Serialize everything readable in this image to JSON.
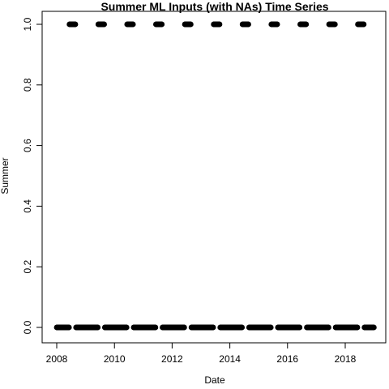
{
  "chart_data": {
    "type": "scatter",
    "title": "Summer ML Inputs (with NAs) Time Series",
    "xlabel": "Date",
    "ylabel": "Summer",
    "x_ticks": [
      "2008",
      "2010",
      "2012",
      "2014",
      "2016",
      "2018"
    ],
    "y_ticks": [
      "0.0",
      "0.2",
      "0.4",
      "0.6",
      "0.8",
      "1.0"
    ],
    "xlim": [
      "2007-10-16",
      "2019-03-15"
    ],
    "ylim": [
      -0.04,
      1.04
    ],
    "grid": false,
    "legend": "none",
    "marker": "filled-circle",
    "color": "#000000",
    "series": [
      {
        "description": "Summer = 1 runs (date ranges)",
        "y": 1,
        "segments": [
          [
            "2008-06-10",
            "2008-08-25"
          ],
          [
            "2009-06-10",
            "2009-08-25"
          ],
          [
            "2010-06-10",
            "2010-08-25"
          ],
          [
            "2011-06-10",
            "2011-08-25"
          ],
          [
            "2012-06-10",
            "2012-08-25"
          ],
          [
            "2013-06-10",
            "2013-08-25"
          ],
          [
            "2014-06-10",
            "2014-08-25"
          ],
          [
            "2015-06-10",
            "2015-08-25"
          ],
          [
            "2016-06-10",
            "2016-08-25"
          ],
          [
            "2017-06-10",
            "2017-08-25"
          ],
          [
            "2018-06-10",
            "2018-08-25"
          ]
        ]
      },
      {
        "description": "Summer = 0 runs (date ranges)",
        "y": 0,
        "segments": [
          [
            "2008-01-01",
            "2008-06-05"
          ],
          [
            "2008-09-01",
            "2009-06-05"
          ],
          [
            "2009-09-01",
            "2010-06-05"
          ],
          [
            "2010-09-01",
            "2011-06-05"
          ],
          [
            "2011-09-01",
            "2012-06-05"
          ],
          [
            "2012-09-01",
            "2013-06-05"
          ],
          [
            "2013-09-01",
            "2014-06-05"
          ],
          [
            "2014-09-01",
            "2015-06-05"
          ],
          [
            "2015-09-01",
            "2016-06-05"
          ],
          [
            "2016-09-01",
            "2017-06-05"
          ],
          [
            "2017-09-01",
            "2018-06-05"
          ],
          [
            "2018-09-01",
            "2018-12-31"
          ]
        ]
      }
    ]
  }
}
